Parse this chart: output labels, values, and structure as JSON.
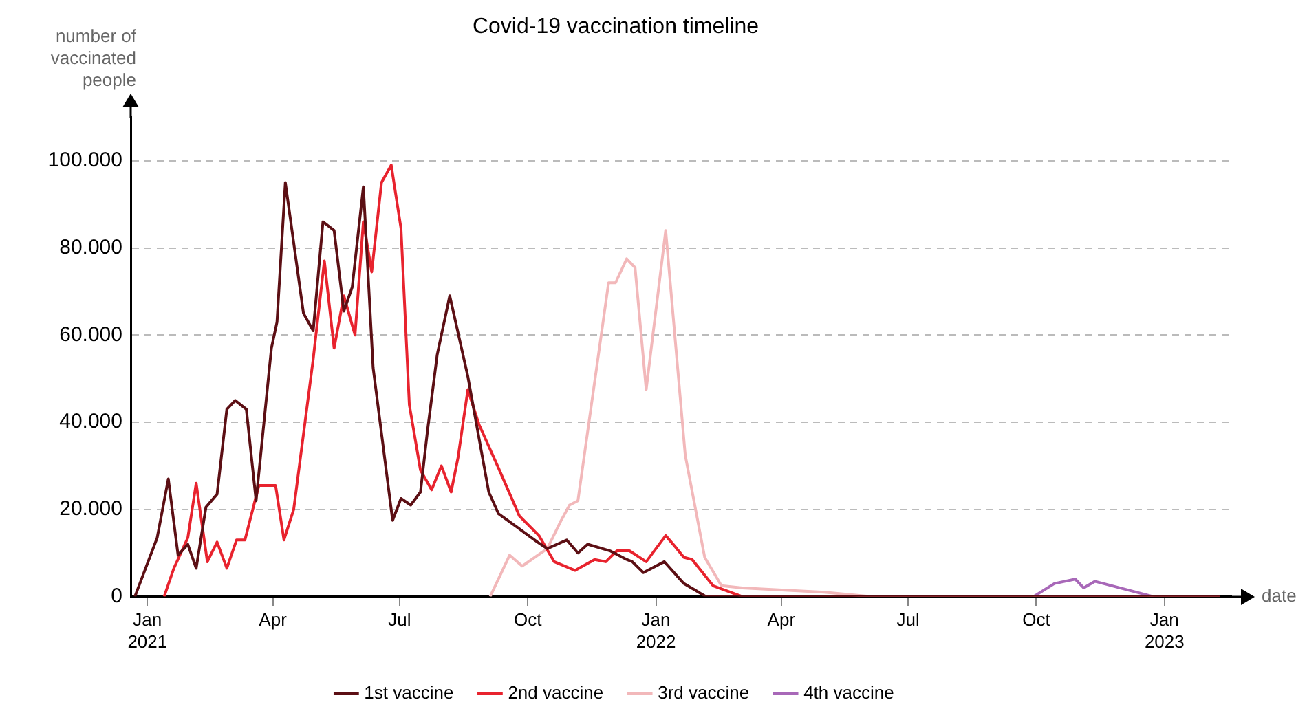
{
  "chart_data": {
    "type": "line",
    "title": "Covid-19 vaccination timeline",
    "xlabel": "date",
    "ylabel": "number of vaccinated people",
    "xlim": [
      "2020-12-20",
      "2023-02-18"
    ],
    "xticks": [
      {
        "value": "2021-01-01",
        "label": "Jan\n2021"
      },
      {
        "value": "2021-04-01",
        "label": "Apr"
      },
      {
        "value": "2021-07-01",
        "label": "Jul"
      },
      {
        "value": "2021-10-01",
        "label": "Oct"
      },
      {
        "value": "2022-01-01",
        "label": "Jan\n2022"
      },
      {
        "value": "2022-04-01",
        "label": "Apr"
      },
      {
        "value": "2022-07-01",
        "label": "Jul"
      },
      {
        "value": "2022-10-01",
        "label": "Oct"
      },
      {
        "value": "2023-01-01",
        "label": "Jan\n2023"
      }
    ],
    "ylim": [
      0,
      110000
    ],
    "yticks": [
      0,
      {
        "value": 20000,
        "label": "20.000"
      },
      {
        "value": 40000,
        "label": "40.000"
      },
      {
        "value": 60000,
        "label": "60.000"
      },
      {
        "value": 80000,
        "label": "80.000"
      },
      {
        "value": 100000,
        "label": "100.000"
      }
    ],
    "grid": "y",
    "legend": "bottom",
    "marker": "none",
    "line_style": "solid",
    "series": [
      {
        "name": "1st vaccine",
        "color": "#5c0f14",
        "x": [
          "2020-12-23",
          "2021-01-08",
          "2021-01-16",
          "2021-01-23",
          "2021-01-30",
          "2021-02-05",
          "2021-02-12",
          "2021-02-20",
          "2021-02-27",
          "2021-03-05",
          "2021-03-13",
          "2021-03-20",
          "2021-03-31",
          "2021-04-04",
          "2021-04-10",
          "2021-04-23",
          "2021-04-30",
          "2021-05-07",
          "2021-05-15",
          "2021-05-22",
          "2021-05-28",
          "2021-06-05",
          "2021-06-12",
          "2021-06-26",
          "2021-07-02",
          "2021-07-09",
          "2021-07-16",
          "2021-07-21",
          "2021-07-28",
          "2021-08-06",
          "2021-08-19",
          "2021-09-03",
          "2021-09-10",
          "2021-09-23",
          "2021-10-08",
          "2021-10-15",
          "2021-10-29",
          "2021-11-06",
          "2021-11-13",
          "2021-11-29",
          "2021-12-11",
          "2021-12-15",
          "2021-12-23",
          "2022-01-07",
          "2022-01-21",
          "2022-02-06",
          "2023-02-10"
        ],
        "values": [
          0,
          13500,
          27000,
          9500,
          12000,
          6500,
          20500,
          23500,
          43000,
          45000,
          43000,
          22000,
          57000,
          63000,
          95000,
          65000,
          61000,
          86000,
          84000,
          65500,
          71000,
          94000,
          52500,
          17500,
          22500,
          21000,
          24000,
          38000,
          55500,
          69000,
          50500,
          24000,
          19000,
          16000,
          12500,
          11000,
          13000,
          10000,
          12000,
          10500,
          8500,
          8000,
          5500,
          8000,
          3000,
          0,
          0
        ]
      },
      {
        "name": "2nd vaccine",
        "color": "#e8232e",
        "x": [
          "2021-01-13",
          "2021-01-20",
          "2021-01-30",
          "2021-02-05",
          "2021-02-13",
          "2021-02-20",
          "2021-02-27",
          "2021-03-06",
          "2021-03-12",
          "2021-03-22",
          "2021-04-03",
          "2021-04-09",
          "2021-04-16",
          "2021-04-30",
          "2021-05-08",
          "2021-05-15",
          "2021-05-22",
          "2021-05-30",
          "2021-06-05",
          "2021-06-11",
          "2021-06-18",
          "2021-06-25",
          "2021-07-02",
          "2021-07-08",
          "2021-07-16",
          "2021-07-24",
          "2021-07-31",
          "2021-08-07",
          "2021-08-12",
          "2021-08-19",
          "2021-08-27",
          "2021-09-10",
          "2021-09-25",
          "2021-10-09",
          "2021-10-20",
          "2021-11-04",
          "2021-11-18",
          "2021-11-26",
          "2021-12-04",
          "2021-12-13",
          "2021-12-25",
          "2022-01-08",
          "2022-01-16",
          "2022-01-21",
          "2022-01-27",
          "2022-02-11",
          "2022-03-04",
          "2023-02-10"
        ],
        "values": [
          0,
          6500,
          13500,
          26000,
          8000,
          12500,
          6500,
          13000,
          13000,
          25500,
          25500,
          13000,
          20000,
          54500,
          77000,
          57000,
          69000,
          60000,
          86000,
          74500,
          95000,
          99000,
          84500,
          44000,
          29000,
          24500,
          30000,
          24000,
          32000,
          47500,
          39500,
          29500,
          18500,
          14000,
          8000,
          6000,
          8500,
          8000,
          10500,
          10500,
          8000,
          14000,
          11000,
          9000,
          8500,
          2500,
          0,
          0
        ]
      },
      {
        "name": "3rd vaccine",
        "color": "#f2b8ba",
        "x": [
          "2021-09-04",
          "2021-09-18",
          "2021-09-27",
          "2021-10-15",
          "2021-10-25",
          "2021-10-31",
          "2021-11-06",
          "2021-11-28",
          "2021-12-03",
          "2021-12-11",
          "2021-12-17",
          "2021-12-25",
          "2022-01-08",
          "2022-01-22",
          "2022-02-05",
          "2022-02-17",
          "2022-03-04",
          "2022-05-02",
          "2022-06-04",
          "2023-02-10"
        ],
        "values": [
          0,
          9500,
          7000,
          11000,
          17500,
          21000,
          22000,
          72000,
          72000,
          77500,
          75500,
          47500,
          84000,
          32500,
          9000,
          2500,
          2000,
          1000,
          0,
          0
        ]
      },
      {
        "name": "4th vaccine",
        "color": "#a868b8",
        "x": [
          "2022-09-29",
          "2022-10-14",
          "2022-10-29",
          "2022-11-04",
          "2022-11-12",
          "2022-12-24"
        ],
        "values": [
          0,
          3000,
          4000,
          2000,
          3500,
          0
        ]
      }
    ]
  }
}
